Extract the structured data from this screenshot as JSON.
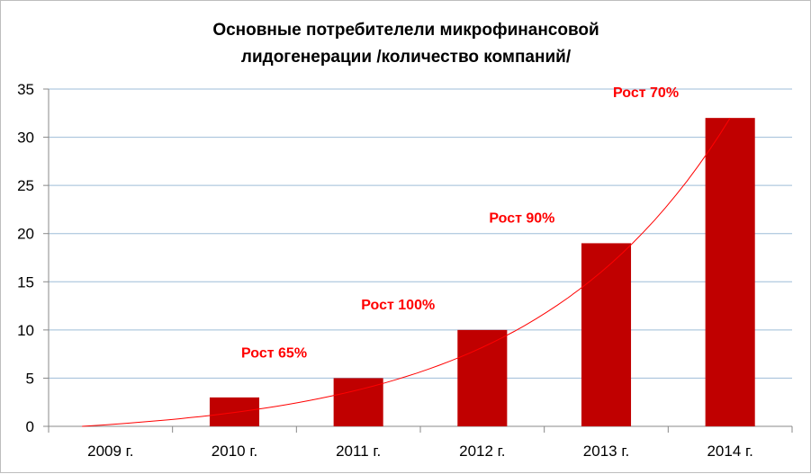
{
  "chart_data": {
    "type": "bar",
    "title": "Основные потребителели микрофинансовой лидогенерации /количество компаний/",
    "title_lines": [
      "Основные потребителели микрофинансовой",
      "лидогенерации /количество компаний/"
    ],
    "categories": [
      "2009 г.",
      "2010 г.",
      "2011 г.",
      "2012 г.",
      "2013 г.",
      "2014 г."
    ],
    "values": [
      0,
      3,
      5,
      10,
      19,
      32
    ],
    "ylim": [
      0,
      35
    ],
    "yticks": [
      0,
      5,
      10,
      15,
      20,
      25,
      30,
      35
    ],
    "xlabel": "",
    "ylabel": "",
    "grid": true,
    "legend": "none",
    "trendline": {
      "type": "exponential",
      "color": "#e8262a"
    },
    "annotations": [
      {
        "text": "Рост 65%",
        "category": "2010 г."
      },
      {
        "text": "Рост 100%",
        "category": "2011 г."
      },
      {
        "text": "Рост 90%",
        "category": "2012 г."
      },
      {
        "text": "Рост 70%",
        "category": "2013 г."
      }
    ],
    "colors": {
      "bar": "#c00000",
      "annotation": "#ff0000",
      "grid": "#9ebdd8",
      "axis": "#888888"
    }
  }
}
